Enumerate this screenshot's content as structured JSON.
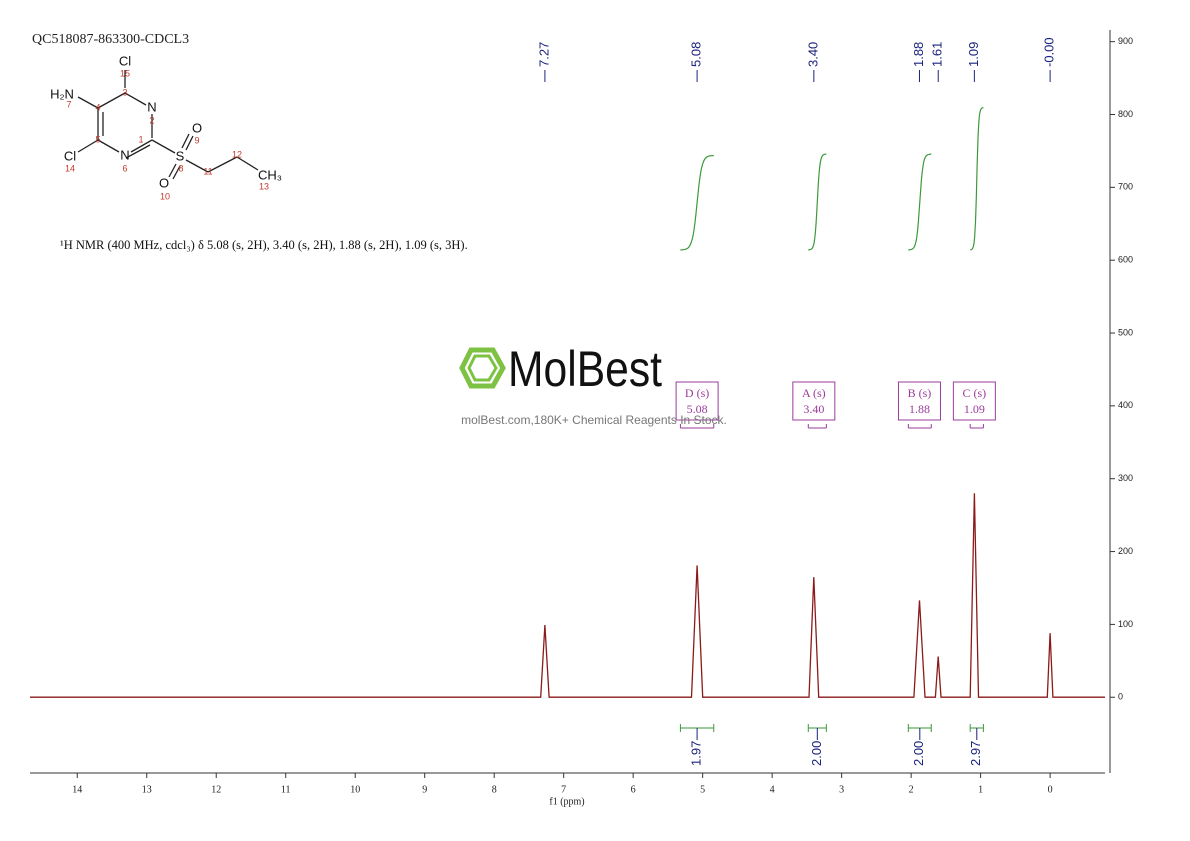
{
  "chart_data": {
    "type": "line",
    "title": "QC518087-863300-CDCL3",
    "subtitle": "¹H NMR (400 MHz, cdcl₃) δ 5.08 (s, 2H), 3.40 (s, 2H), 1.88 (s, 2H), 1.09 (s, 3H).",
    "xlabel": "f1 (ppm)",
    "xlim": [
      14.68,
      -0.79
    ],
    "xticks": [
      14,
      13,
      12,
      11,
      10,
      9,
      8,
      7,
      6,
      5,
      4,
      3,
      2,
      1,
      0
    ],
    "ylim": [
      -104,
      916
    ],
    "yticks": [
      0,
      100,
      200,
      300,
      400,
      500,
      600,
      700,
      800,
      900
    ],
    "series": [
      {
        "color": "#8b1a1a",
        "x": [
          14.68,
          7.33,
          7.27,
          7.21,
          5.16,
          5.08,
          5.0,
          3.47,
          3.4,
          3.33,
          1.96,
          1.88,
          1.8,
          1.65,
          1.61,
          1.57,
          1.15,
          1.09,
          1.03,
          0.04,
          0.0,
          -0.04,
          -0.79
        ],
        "values": [
          0,
          0,
          99,
          0,
          0,
          181,
          0,
          0,
          165,
          0,
          0,
          133,
          0,
          0,
          56,
          0,
          0,
          280,
          0,
          0,
          88,
          0,
          0
        ]
      }
    ],
    "peak_labels": {
      "values": [
        7.27,
        5.08,
        3.4,
        1.88,
        1.61,
        1.09,
        0
      ],
      "value_labels": [
        "7.27",
        "5.08",
        "3.40",
        "1.88",
        "1.61",
        "1.09",
        "-0.00"
      ],
      "color": "#1a237e"
    },
    "integrals": {
      "values": [
        1.97,
        2,
        2,
        2.97
      ],
      "value_labels": [
        "1.97",
        "2.00",
        "2.00",
        "2.97"
      ],
      "ranges": [
        [
          5.32,
          4.84
        ],
        [
          3.48,
          3.22
        ],
        [
          2.04,
          1.71
        ],
        [
          1.15,
          0.96
        ]
      ],
      "color": "#3a9a3a"
    },
    "multiplets": {
      "labels": [
        "D (s)",
        "A (s)",
        "B (s)",
        "C (s)"
      ],
      "values": [
        5.08,
        3.4,
        1.88,
        1.09
      ],
      "value_labels": [
        "5.08",
        "3.40",
        "1.88",
        "1.09"
      ],
      "color": "#9b3b9b"
    },
    "watermark": {
      "logo": "MolBest",
      "text": "molBest.com,180K+ Chemical Reagents In Stock."
    },
    "structure": {
      "atoms": [
        "Cl",
        "N",
        "H₂N",
        "Cl",
        "N",
        "S",
        "O",
        "O",
        "CH₃"
      ],
      "numbers": [
        15,
        3,
        2,
        4,
        7,
        1,
        5,
        14,
        6,
        8,
        9,
        10,
        11,
        12,
        13
      ]
    }
  }
}
